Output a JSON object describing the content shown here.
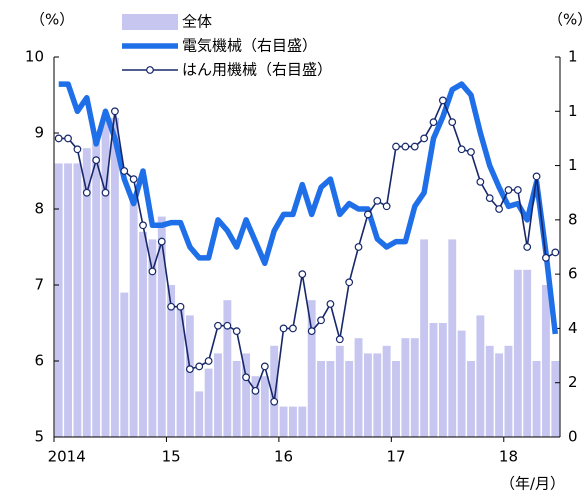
{
  "chart_data": {
    "type": "bar",
    "ylabel": "（%）",
    "y2label": "（%）",
    "xlabel": "（年/月）",
    "categories": [
      "2014",
      null,
      null,
      null,
      null,
      null,
      null,
      null,
      null,
      null,
      null,
      null,
      "15",
      null,
      null,
      null,
      null,
      null,
      null,
      null,
      null,
      null,
      null,
      null,
      "16",
      null,
      null,
      null,
      null,
      null,
      null,
      null,
      null,
      null,
      null,
      null,
      "17",
      null,
      null,
      null,
      null,
      null,
      null,
      null,
      null,
      null,
      null,
      null,
      "18",
      null,
      null,
      null,
      null,
      null
    ],
    "ylim": [
      5,
      10
    ],
    "yticks": [
      5,
      6,
      7,
      8,
      9,
      10
    ],
    "y2lim": [
      0,
      14
    ],
    "y2ticks": [
      0,
      2,
      4,
      6,
      8,
      {
        "value": 10,
        "label": "1"
      },
      {
        "value": 12,
        "label": "1"
      },
      {
        "value": 14,
        "label": "1"
      }
    ],
    "series": [
      {
        "name": "全体",
        "type": "bar",
        "axis": "y",
        "color": "#c6c6f0",
        "values": [
          8.6,
          8.6,
          8.6,
          8.8,
          8.9,
          9.2,
          9.2,
          6.9,
          8.2,
          7.7,
          7.6,
          7.9,
          7.0,
          6.7,
          6.6,
          5.6,
          5.9,
          6.1,
          6.8,
          6.0,
          6.1,
          5.8,
          5.8,
          6.2,
          5.4,
          5.4,
          5.4,
          6.8,
          6.0,
          6.0,
          6.2,
          6.0,
          6.3,
          6.1,
          6.1,
          6.2,
          6.0,
          6.3,
          6.3,
          7.6,
          6.5,
          6.5,
          7.6,
          6.4,
          6.0,
          6.6,
          6.2,
          6.1,
          6.2,
          7.2,
          7.2,
          6.0,
          7.0,
          6.0
        ]
      },
      {
        "name": "電気機械（右目盛）",
        "type": "line",
        "axis": "y2",
        "color": "#1f6fe8",
        "values": [
          13.0,
          13.0,
          12.0,
          12.5,
          10.8,
          12.0,
          11.0,
          9.5,
          8.6,
          9.8,
          7.8,
          7.8,
          7.9,
          7.9,
          7.0,
          6.6,
          6.6,
          8.0,
          7.6,
          7.0,
          8.0,
          7.2,
          6.4,
          7.6,
          8.2,
          8.2,
          9.3,
          8.2,
          9.2,
          9.5,
          8.2,
          8.6,
          8.4,
          8.4,
          7.3,
          7.0,
          7.2,
          7.2,
          8.5,
          9.0,
          11.0,
          11.8,
          12.8,
          13.0,
          12.6,
          11.2,
          10.0,
          9.2,
          8.5,
          8.6,
          8.0,
          9.4,
          6.8,
          3.8
        ]
      },
      {
        "name": "はん用機械（右目盛）",
        "type": "line-marker",
        "axis": "y2",
        "color": "#17286a",
        "values": [
          11.0,
          11.0,
          10.6,
          9.0,
          10.2,
          9.0,
          12.0,
          9.8,
          9.5,
          7.8,
          6.1,
          7.2,
          4.8,
          4.8,
          2.5,
          2.6,
          2.8,
          4.1,
          4.1,
          3.9,
          2.2,
          1.7,
          2.6,
          1.3,
          4.0,
          4.0,
          6.0,
          3.9,
          4.3,
          4.9,
          3.6,
          5.7,
          7.0,
          8.2,
          8.7,
          8.5,
          10.7,
          10.7,
          10.7,
          11.0,
          11.6,
          12.4,
          11.6,
          10.6,
          10.5,
          9.4,
          8.8,
          8.4,
          9.1,
          9.1,
          7.0,
          9.6,
          6.6,
          6.8
        ]
      }
    ]
  }
}
